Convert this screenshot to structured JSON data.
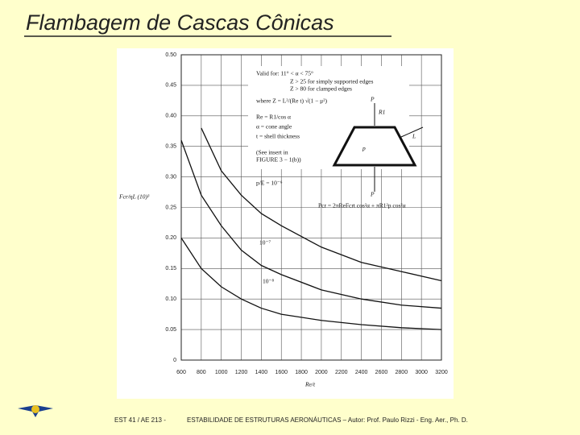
{
  "header": {
    "title": "Flambagem de Cascas Cônicas"
  },
  "footer": {
    "course": "EST 41 / AE 213 -",
    "text": "ESTABILIDADE DE ESTRUTURAS AERONÁUTICAS – Autor: Prof. Paulo Rizzi - Eng. Aer., Ph. D."
  },
  "chart_data": {
    "type": "line",
    "y_label": "Fcr/ηL (10)³",
    "x_label": "Re/t",
    "x": [
      600,
      800,
      1000,
      1200,
      1400,
      1600,
      2000,
      2400,
      2800,
      3200
    ],
    "series": [
      {
        "name": "p/E = 10⁻⁶",
        "color": "#111111",
        "values": [
          null,
          0.38,
          0.31,
          0.27,
          0.24,
          0.22,
          0.185,
          0.16,
          0.145,
          0.13
        ]
      },
      {
        "name": "10⁻⁷",
        "color": "#111111",
        "values": [
          0.36,
          0.27,
          0.22,
          0.18,
          0.155,
          0.14,
          0.115,
          0.1,
          0.09,
          0.085
        ]
      },
      {
        "name": "10⁻⁸",
        "color": "#111111",
        "values": [
          0.2,
          0.15,
          0.12,
          0.1,
          0.085,
          0.075,
          0.065,
          0.058,
          0.053,
          0.05
        ]
      }
    ],
    "xlim": [
      600,
      3200
    ],
    "ylim": [
      0,
      0.5
    ],
    "xticks": [
      600,
      800,
      1000,
      1200,
      1400,
      1600,
      1800,
      2000,
      2200,
      2400,
      2600,
      2800,
      3000,
      3200
    ],
    "yticks": [
      0,
      0.05,
      {
        "value": 0.1,
        "label": "0.10"
      },
      0.15,
      {
        "value": 0.2,
        "label": "0.20"
      },
      0.25,
      {
        "value": 0.3,
        "label": "0.30"
      },
      0.35,
      {
        "value": 0.4,
        "label": "0.40"
      },
      0.45,
      {
        "value": 0.5,
        "label": "0.50"
      }
    ],
    "grid": true,
    "annotations": [
      "Valid for:  11° < α < 75°",
      "Z > 25 for simply supported edges",
      "Z > 80 for clamped edges",
      "where Z = L²/(Re t) √(1 − μ²)",
      "Re = R1/cos α",
      "α = cone angle",
      "t = shell thickness",
      "(See insert in",
      "FIGURE 3 − 1(b))",
      "Pcr = 2πReFcrt cos²α + πR1²p cos²α"
    ],
    "diagram_labels": [
      "P",
      "R1",
      "L",
      "p",
      "P"
    ]
  }
}
